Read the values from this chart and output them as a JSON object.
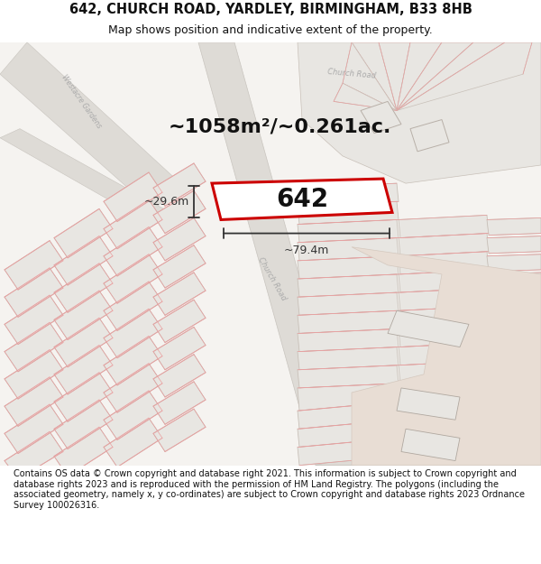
{
  "title_line1": "642, CHURCH ROAD, YARDLEY, BIRMINGHAM, B33 8HB",
  "title_line2": "Map shows position and indicative extent of the property.",
  "area_text": "~1058m²/~0.261ac.",
  "label_642": "642",
  "dim_width": "~79.4m",
  "dim_height": "~29.6m",
  "footer": "Contains OS data © Crown copyright and database right 2021. This information is subject to Crown copyright and database rights 2023 and is reproduced with the permission of HM Land Registry. The polygons (including the associated geometry, namely x, y co-ordinates) are subject to Crown copyright and database rights 2023 Ordnance Survey 100026316.",
  "map_bg": "#f5f3f0",
  "building_fill": "#e8e6e2",
  "building_stroke": "#c8c0b8",
  "prop_line_color": "#e8a0a0",
  "highlight_fill": "#ffffff",
  "highlight_stroke": "#cc0000",
  "road_fill": "#dedbd6",
  "road_edge": "#c8c4be",
  "beige_fill": "#e8ddd4",
  "beige_edge": "#d4c8be",
  "dim_color": "#333333",
  "road_label_color": "#aaaaaa",
  "title_color": "#111111",
  "footer_color": "#111111",
  "area_text_color": "#111111",
  "label_color": "#111111",
  "white_bg": "#ffffff",
  "title_fontsize": 10.5,
  "subtitle_fontsize": 9,
  "area_fontsize": 16,
  "label_fontsize": 20,
  "dim_fontsize": 9,
  "footer_fontsize": 7.0
}
